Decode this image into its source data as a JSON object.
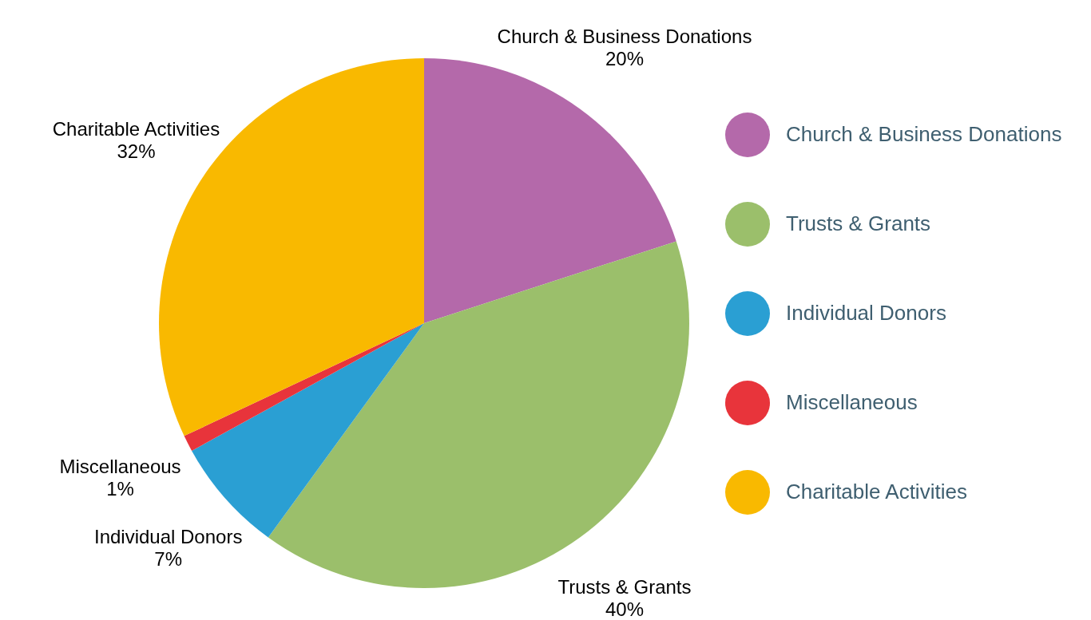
{
  "chart_data": {
    "type": "pie",
    "categories": [
      "Church & Business Donations",
      "Trusts & Grants",
      "Individual Donors",
      "Miscellaneous",
      "Charitable Activities"
    ],
    "values": [
      20,
      40,
      7,
      1,
      32
    ],
    "value_labels": [
      "20%",
      "40%",
      "7%",
      "1%",
      "32%"
    ],
    "colors": [
      "#b469aa",
      "#9bbf6b",
      "#2a9fd3",
      "#e8343b",
      "#f9b900"
    ],
    "legend": "right"
  }
}
